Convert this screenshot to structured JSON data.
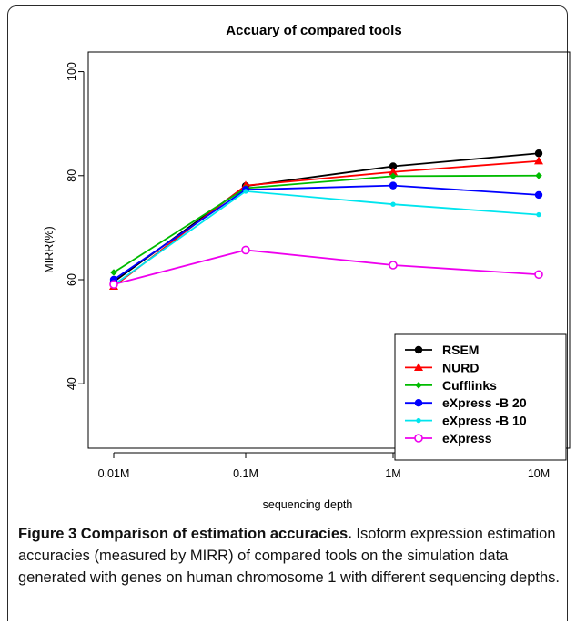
{
  "chart_data": {
    "type": "line",
    "title": "Accuary of compared tools",
    "xlabel": "sequencing depth",
    "ylabel": "MIRR(%)",
    "categories": [
      "0.01M",
      "0.1M",
      "1M",
      "10M"
    ],
    "yticks": [
      40,
      60,
      80,
      100
    ],
    "ylim": [
      20,
      100
    ],
    "legend_position": "bottom-right",
    "series": [
      {
        "name": "RSEM",
        "color": "#000000",
        "marker": "circle",
        "values": [
          59.6,
          78.0,
          81.8,
          84.3
        ]
      },
      {
        "name": "NURD",
        "color": "#ff0000",
        "marker": "triangle",
        "values": [
          58.7,
          78.1,
          80.7,
          82.8
        ]
      },
      {
        "name": "Cufflinks",
        "color": "#00bb00",
        "marker": "diamond",
        "values": [
          61.4,
          77.6,
          79.9,
          80.0
        ]
      },
      {
        "name": "eXpress -B 20",
        "color": "#0000ff",
        "marker": "circle",
        "values": [
          60.0,
          77.3,
          78.1,
          76.3
        ]
      },
      {
        "name": "eXpress -B 10",
        "color": "#00e5ee",
        "marker": "small-circle",
        "values": [
          59.0,
          77.0,
          74.5,
          72.5
        ]
      },
      {
        "name": "eXpress",
        "color": "#ee00ee",
        "marker": "open-circle",
        "values": [
          59.1,
          65.7,
          62.8,
          61.0
        ]
      }
    ]
  },
  "caption": {
    "lead": "Figure 3 Comparison of estimation accuracies.",
    "text": " Isoform expression estimation accuracies (measured by MIRR) of compared tools on the simulation data generated with genes on human chromosome 1 with different sequencing depths."
  }
}
